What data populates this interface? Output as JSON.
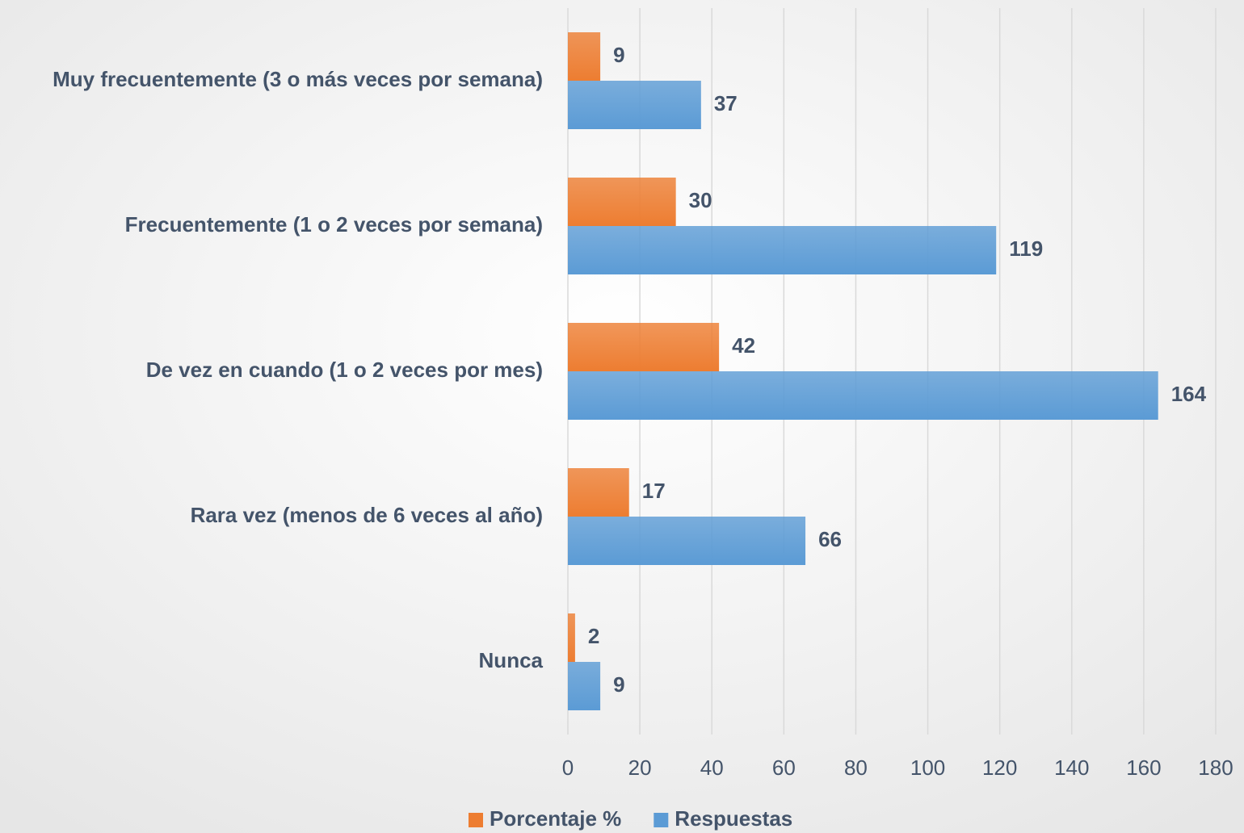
{
  "chart_data": {
    "type": "bar",
    "orientation": "horizontal",
    "categories": [
      "Muy frecuentemente (3 o más veces por semana)",
      "Frecuentemente (1 o 2 veces por semana)",
      "De vez en cuando (1 o 2 veces por mes)",
      "Rara vez (menos de 6 veces al año)",
      "Nunca"
    ],
    "series": [
      {
        "name": "Porcentaje %",
        "color": "#ed7d31",
        "values": [
          9,
          30,
          42,
          17,
          2
        ]
      },
      {
        "name": "Respuestas",
        "color": "#5b9bd5",
        "values": [
          37,
          119,
          164,
          66,
          9
        ]
      }
    ],
    "xlim": [
      0,
      180
    ],
    "xticks": [
      0,
      20,
      40,
      60,
      80,
      100,
      120,
      140,
      160,
      180
    ],
    "grid": true,
    "legend": "bottom"
  }
}
